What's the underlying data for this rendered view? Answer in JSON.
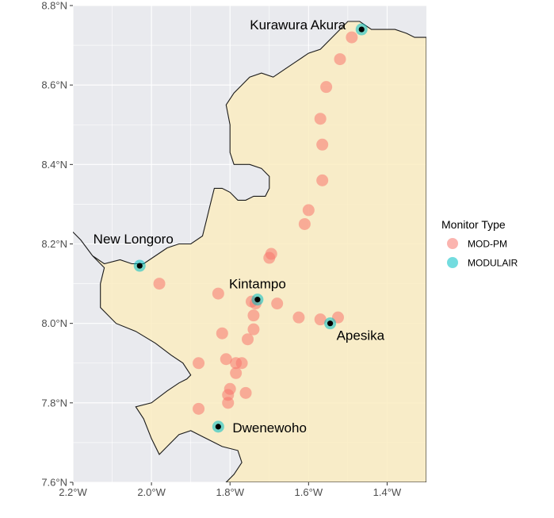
{
  "chart_data": {
    "type": "map",
    "x_axis": {
      "range": [
        -2.2,
        -1.3
      ],
      "ticks": [
        {
          "value": -2.2,
          "label": "2.2°W"
        },
        {
          "value": -2.0,
          "label": "2.0°W"
        },
        {
          "value": -1.8,
          "label": "1.8°W"
        },
        {
          "value": -1.6,
          "label": "1.6°W"
        },
        {
          "value": -1.4,
          "label": "1.4°W"
        }
      ]
    },
    "y_axis": {
      "range": [
        7.6,
        8.8
      ],
      "ticks": [
        {
          "value": 7.6,
          "label": "7.6°N"
        },
        {
          "value": 7.8,
          "label": "7.8°N"
        },
        {
          "value": 8.0,
          "label": "8.0°N"
        },
        {
          "value": 8.2,
          "label": "8.2°N"
        },
        {
          "value": 8.4,
          "label": "8.4°N"
        },
        {
          "value": 8.6,
          "label": "8.6°N"
        },
        {
          "value": 8.8,
          "label": "8.8°N"
        }
      ]
    },
    "grid": true,
    "colors": {
      "panel_background": "#e9eaee",
      "region_fill": "#faecc1",
      "region_border": "#1a1a1a",
      "grid": "#ffffff",
      "mod_pm": "#f8766d",
      "modulair": "#00bfc4"
    },
    "region_boundary": [
      [
        -2.2,
        8.23
      ],
      [
        -2.18,
        8.21
      ],
      [
        -2.15,
        8.17
      ],
      [
        -2.12,
        8.15
      ],
      [
        -2.08,
        8.16
      ],
      [
        -2.05,
        8.15
      ],
      [
        -2.02,
        8.15
      ],
      [
        -1.99,
        8.17
      ],
      [
        -1.96,
        8.19
      ],
      [
        -1.93,
        8.2
      ],
      [
        -1.9,
        8.2
      ],
      [
        -1.87,
        8.22
      ],
      [
        -1.86,
        8.26
      ],
      [
        -1.85,
        8.3
      ],
      [
        -1.84,
        8.34
      ],
      [
        -1.82,
        8.34
      ],
      [
        -1.8,
        8.33
      ],
      [
        -1.78,
        8.31
      ],
      [
        -1.76,
        8.31
      ],
      [
        -1.74,
        8.32
      ],
      [
        -1.71,
        8.32
      ],
      [
        -1.7,
        8.34
      ],
      [
        -1.7,
        8.37
      ],
      [
        -1.72,
        8.39
      ],
      [
        -1.75,
        8.4
      ],
      [
        -1.79,
        8.4
      ],
      [
        -1.8,
        8.43
      ],
      [
        -1.8,
        8.5
      ],
      [
        -1.81,
        8.55
      ],
      [
        -1.79,
        8.58
      ],
      [
        -1.77,
        8.6
      ],
      [
        -1.75,
        8.62
      ],
      [
        -1.72,
        8.63
      ],
      [
        -1.69,
        8.62
      ],
      [
        -1.66,
        8.64
      ],
      [
        -1.63,
        8.66
      ],
      [
        -1.6,
        8.68
      ],
      [
        -1.57,
        8.69
      ],
      [
        -1.54,
        8.72
      ],
      [
        -1.52,
        8.74
      ],
      [
        -1.5,
        8.76
      ],
      [
        -1.47,
        8.76
      ],
      [
        -1.44,
        8.74
      ],
      [
        -1.41,
        8.74
      ],
      [
        -1.38,
        8.74
      ],
      [
        -1.35,
        8.73
      ],
      [
        -1.33,
        8.72
      ],
      [
        -1.31,
        8.72
      ],
      [
        -1.3,
        8.72
      ],
      [
        -1.3,
        7.6
      ],
      [
        -1.81,
        7.6
      ],
      [
        -1.79,
        7.62
      ],
      [
        -1.77,
        7.65
      ],
      [
        -1.78,
        7.68
      ],
      [
        -1.82,
        7.69
      ],
      [
        -1.86,
        7.71
      ],
      [
        -1.9,
        7.73
      ],
      [
        -1.93,
        7.72
      ],
      [
        -1.96,
        7.69
      ],
      [
        -1.98,
        7.67
      ],
      [
        -2.0,
        7.71
      ],
      [
        -2.02,
        7.76
      ],
      [
        -2.04,
        7.79
      ],
      [
        -2.0,
        7.8
      ],
      [
        -1.96,
        7.83
      ],
      [
        -1.93,
        7.85
      ],
      [
        -1.91,
        7.86
      ],
      [
        -1.9,
        7.87
      ],
      [
        -1.92,
        7.9
      ],
      [
        -1.95,
        7.92
      ],
      [
        -1.99,
        7.95
      ],
      [
        -2.04,
        7.98
      ],
      [
        -2.09,
        8.0
      ],
      [
        -2.13,
        8.04
      ],
      [
        -2.13,
        8.1
      ],
      [
        -2.12,
        8.14
      ],
      [
        -2.15,
        8.17
      ],
      [
        -2.18,
        8.21
      ]
    ],
    "series": [
      {
        "name": "MOD-PM",
        "points": [
          {
            "lon": -1.49,
            "lat": 8.72
          },
          {
            "lon": -1.52,
            "lat": 8.665
          },
          {
            "lon": -1.555,
            "lat": 8.595
          },
          {
            "lon": -1.57,
            "lat": 8.515
          },
          {
            "lon": -1.565,
            "lat": 8.45
          },
          {
            "lon": -1.565,
            "lat": 8.36
          },
          {
            "lon": -1.6,
            "lat": 8.285
          },
          {
            "lon": -1.61,
            "lat": 8.25
          },
          {
            "lon": -1.695,
            "lat": 8.175
          },
          {
            "lon": -1.7,
            "lat": 8.165
          },
          {
            "lon": -1.98,
            "lat": 8.1
          },
          {
            "lon": -1.83,
            "lat": 8.075
          },
          {
            "lon": -1.745,
            "lat": 8.055
          },
          {
            "lon": -1.735,
            "lat": 8.05
          },
          {
            "lon": -1.68,
            "lat": 8.05
          },
          {
            "lon": -1.74,
            "lat": 8.02
          },
          {
            "lon": -1.625,
            "lat": 8.015
          },
          {
            "lon": -1.57,
            "lat": 8.01
          },
          {
            "lon": -1.525,
            "lat": 8.015
          },
          {
            "lon": -1.74,
            "lat": 7.985
          },
          {
            "lon": -1.82,
            "lat": 7.975
          },
          {
            "lon": -1.755,
            "lat": 7.96
          },
          {
            "lon": -1.81,
            "lat": 7.91
          },
          {
            "lon": -1.785,
            "lat": 7.9
          },
          {
            "lon": -1.77,
            "lat": 7.9
          },
          {
            "lon": -1.88,
            "lat": 7.9
          },
          {
            "lon": -1.785,
            "lat": 7.875
          },
          {
            "lon": -1.8,
            "lat": 7.835
          },
          {
            "lon": -1.76,
            "lat": 7.825
          },
          {
            "lon": -1.805,
            "lat": 7.82
          },
          {
            "lon": -1.805,
            "lat": 7.8
          },
          {
            "lon": -1.88,
            "lat": 7.785
          }
        ]
      },
      {
        "name": "MODULAIR",
        "points": [
          {
            "lon": -1.465,
            "lat": 8.74
          },
          {
            "lon": -2.03,
            "lat": 8.145
          },
          {
            "lon": -1.73,
            "lat": 8.06
          },
          {
            "lon": -1.545,
            "lat": 8.0
          },
          {
            "lon": -1.83,
            "lat": 7.74
          }
        ]
      }
    ],
    "place_labels": [
      {
        "name": "Kurawura Akura",
        "lon": -1.465,
        "lat": 8.74,
        "anchor": "end"
      },
      {
        "name": "New Longoro",
        "lon": -2.03,
        "lat": 8.145,
        "anchor": "middle"
      },
      {
        "name": "Kintampo",
        "lon": -1.73,
        "lat": 8.06,
        "anchor": "middle"
      },
      {
        "name": "Apesika",
        "lon": -1.545,
        "lat": 8.0,
        "anchor": "start"
      },
      {
        "name": "Dwenewoho",
        "lon": -1.83,
        "lat": 7.74,
        "anchor": "start"
      }
    ],
    "town_markers": [
      {
        "lon": -1.465,
        "lat": 8.74
      },
      {
        "lon": -2.03,
        "lat": 8.145
      },
      {
        "lon": -1.73,
        "lat": 8.06
      },
      {
        "lon": -1.545,
        "lat": 8.0
      },
      {
        "lon": -1.83,
        "lat": 7.74
      }
    ],
    "legend": {
      "title": "Monitor Type",
      "placement": "right",
      "entries": [
        {
          "label": "MOD-PM",
          "color": "#f8766d"
        },
        {
          "label": "MODULAIR",
          "color": "#00bfc4"
        }
      ]
    }
  }
}
